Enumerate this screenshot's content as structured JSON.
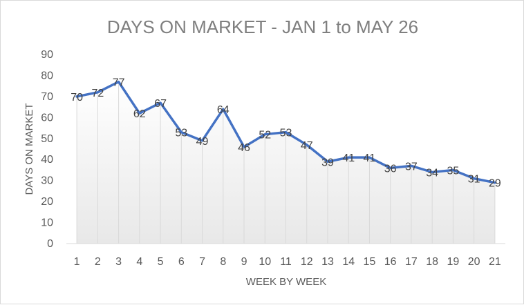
{
  "chart_data": {
    "type": "line",
    "title": "DAYS ON MARKET - JAN 1 to MAY 26",
    "xlabel": "WEEK BY WEEK",
    "ylabel": "DAYS ON MARKET",
    "categories": [
      "1",
      "2",
      "3",
      "4",
      "5",
      "6",
      "7",
      "8",
      "9",
      "10",
      "11",
      "12",
      "13",
      "14",
      "15",
      "16",
      "17",
      "18",
      "19",
      "20",
      "21"
    ],
    "values": [
      70,
      72,
      77,
      62,
      67,
      53,
      49,
      64,
      46,
      52,
      53,
      47,
      39,
      41,
      41,
      36,
      37,
      34,
      35,
      31,
      29
    ],
    "ylim": [
      0,
      90
    ],
    "yticks": [
      0,
      10,
      20,
      30,
      40,
      50,
      60,
      70,
      80,
      90
    ],
    "data_labels": true,
    "grid": false,
    "drop_lines": true,
    "line_color": "#4472c4",
    "area_fill_top_color": "#ffffff",
    "area_fill_bottom_color": "#e8e8e8"
  }
}
